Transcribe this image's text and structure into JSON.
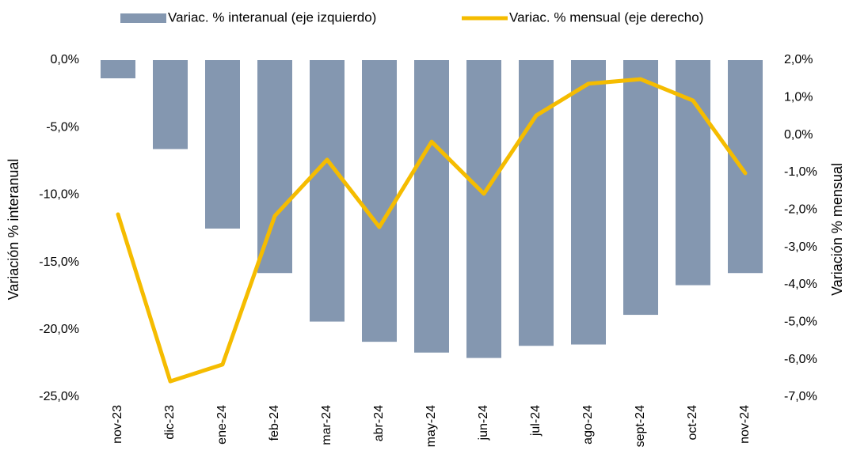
{
  "chart_data": {
    "type": "bar",
    "categories": [
      "nov-23",
      "dic-23",
      "ene-24",
      "feb-24",
      "mar-24",
      "abr-24",
      "may-24",
      "jun-24",
      "jul-24",
      "ago-24",
      "sept-24",
      "oct-24",
      "nov-24"
    ],
    "series": [
      {
        "name": "Variac. % interanual (eje izquierdo)",
        "type": "bar",
        "axis": "y",
        "color": "#8497b0",
        "values": [
          -1.35,
          -6.6,
          -12.5,
          -15.8,
          -19.4,
          -20.9,
          -21.7,
          -22.1,
          -21.2,
          -21.1,
          -18.9,
          -16.7,
          -15.8
        ]
      },
      {
        "name": "Variac. % mensual (eje derecho)",
        "type": "line",
        "axis": "y2",
        "color": "#f5bc00",
        "values": [
          -2.12,
          -6.58,
          -6.13,
          -2.16,
          -0.66,
          -2.46,
          -0.18,
          -1.57,
          0.52,
          1.37,
          1.49,
          0.92,
          -1.02
        ]
      }
    ],
    "ylabel": "Variación % interanual",
    "y2label": "Variación % mensual",
    "ylim": [
      -25,
      0
    ],
    "yticks": [
      {
        "value": 0,
        "label": "0,0%"
      },
      {
        "value": -5,
        "label": "-5,0%"
      },
      {
        "value": -10,
        "label": "-10,0%"
      },
      {
        "value": -15,
        "label": "-15,0%"
      },
      {
        "value": -20,
        "label": "-20,0%"
      },
      {
        "value": -25,
        "label": "-25,0%"
      }
    ],
    "y2lim": [
      -7,
      2
    ],
    "y2ticks": [
      {
        "value": 2,
        "label": "2,0%"
      },
      {
        "value": 1,
        "label": "1,0%"
      },
      {
        "value": 0,
        "label": "0,0%"
      },
      {
        "value": -1,
        "label": "-1,0%"
      },
      {
        "value": -2,
        "label": "-2,0%"
      },
      {
        "value": -3,
        "label": "-3,0%"
      },
      {
        "value": -4,
        "label": "-4,0%"
      },
      {
        "value": -5,
        "label": "-5,0%"
      },
      {
        "value": -6,
        "label": "-6,0%"
      },
      {
        "value": -7,
        "label": "-7,0%"
      }
    ],
    "grid": false,
    "legend": "top"
  }
}
